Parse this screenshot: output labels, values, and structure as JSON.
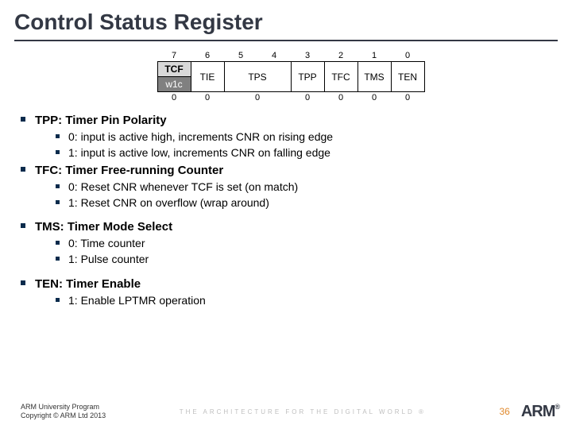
{
  "title": "Control Status Register",
  "register": {
    "bits": [
      "7",
      "6",
      "5",
      "4",
      "3",
      "2",
      "1",
      "0"
    ],
    "fields_top": [
      "TCF",
      "TIE",
      "TPS",
      "TPP",
      "TFC",
      "TMS",
      "TEN"
    ],
    "fields_bot": [
      "w1c",
      "",
      "",
      "",
      "",
      "",
      ""
    ],
    "reset": [
      "0",
      "0",
      "0",
      "0",
      "0",
      "0",
      "0"
    ]
  },
  "bullets": [
    {
      "heading": "TPP: Timer Pin Polarity",
      "items": [
        "0: input is active high, increments CNR on rising edge",
        "1: input is active low, increments CNR on falling edge"
      ]
    },
    {
      "heading": "TFC: Timer Free-running Counter",
      "items": [
        "0: Reset CNR whenever TCF is set (on match)",
        "1: Reset CNR on overflow (wrap around)"
      ]
    },
    {
      "heading": "TMS: Timer Mode Select",
      "items": [
        "0: Time counter",
        "1: Pulse counter"
      ]
    },
    {
      "heading": "TEN: Timer Enable",
      "items": [
        "1: Enable LPTMR operation"
      ]
    }
  ],
  "footer": {
    "line1": "ARM University Program",
    "line2": "Copyright © ARM Ltd 2013",
    "tagline": "THE ARCHITECTURE FOR THE DIGITAL WORLD ®",
    "page": "36",
    "logo": "ARM"
  },
  "colors": {
    "title": "#333844",
    "bullet": "#0a2b4c",
    "pagenum": "#e08a2e",
    "tagline": "#bfbfbf"
  }
}
